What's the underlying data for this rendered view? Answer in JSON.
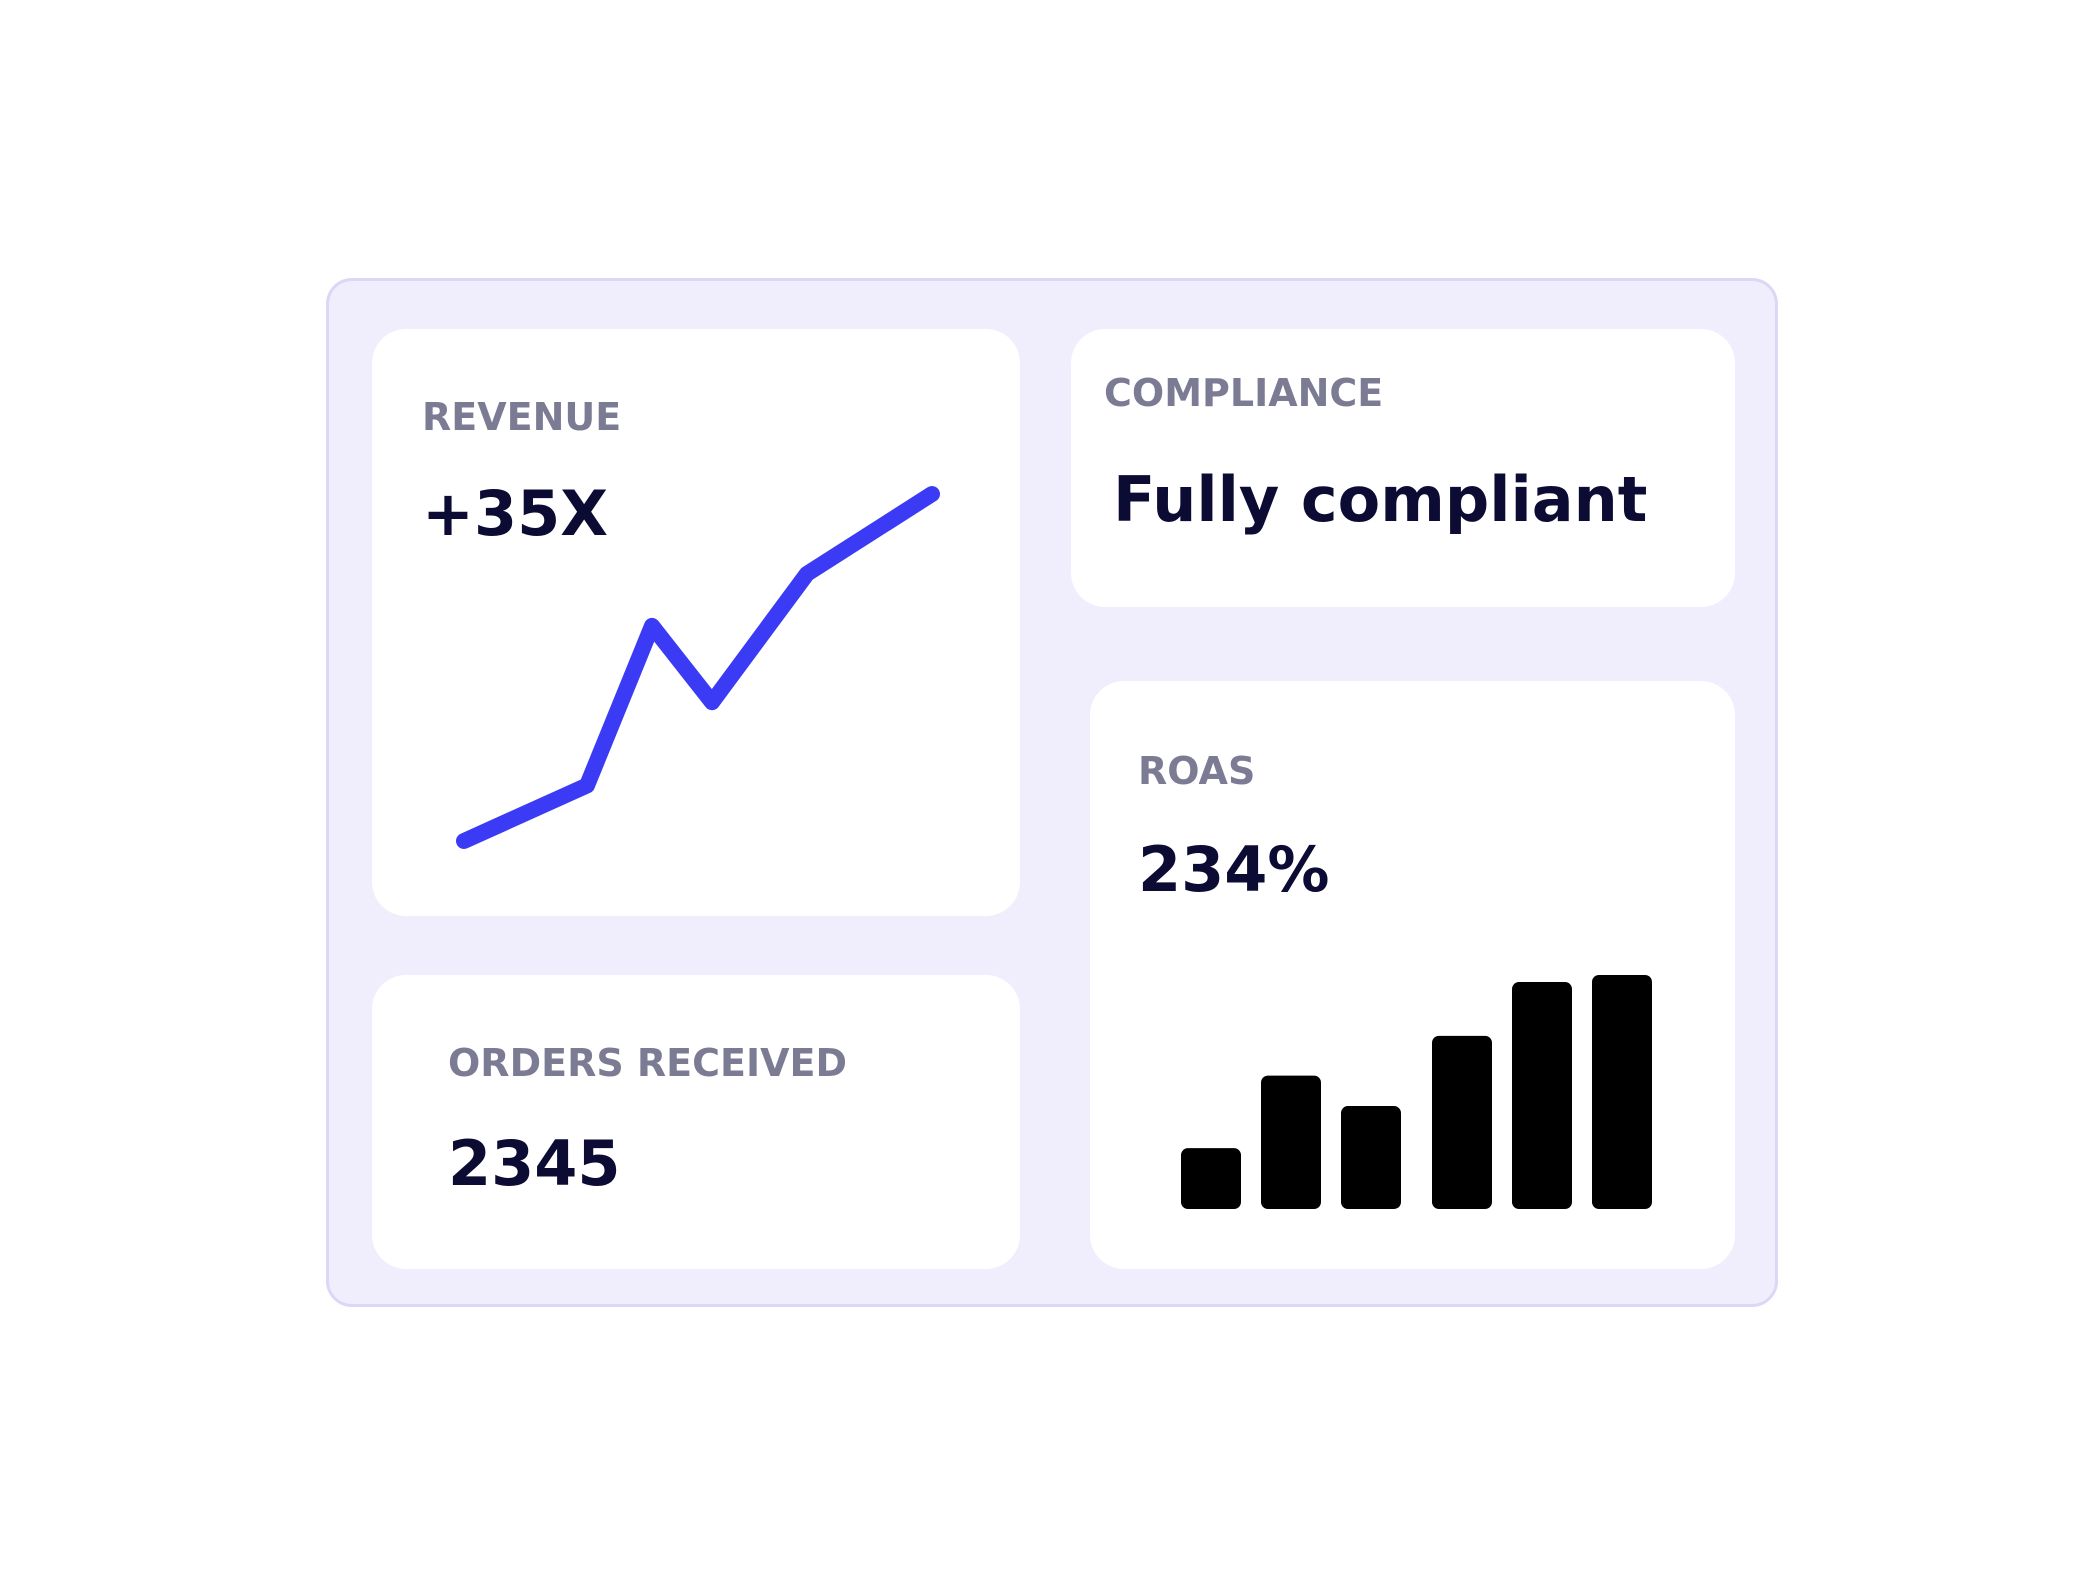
{
  "cards": {
    "revenue": {
      "label": "REVENUE",
      "value": "+35X",
      "line_color": "#3b3bf5",
      "points": [
        0,
        0.16,
        0.62,
        0.4,
        0.77,
        1
      ]
    },
    "compliance": {
      "label": "COMPLIANCE",
      "value": "Fully compliant"
    },
    "orders": {
      "label": "ORDERS RECEIVED",
      "value": "2345"
    },
    "roas": {
      "label": "ROAS",
      "value": "234%",
      "bar_color": "#000000",
      "bars": [
        0.26,
        0.57,
        0.44,
        0.74,
        0.97,
        1
      ]
    }
  }
}
